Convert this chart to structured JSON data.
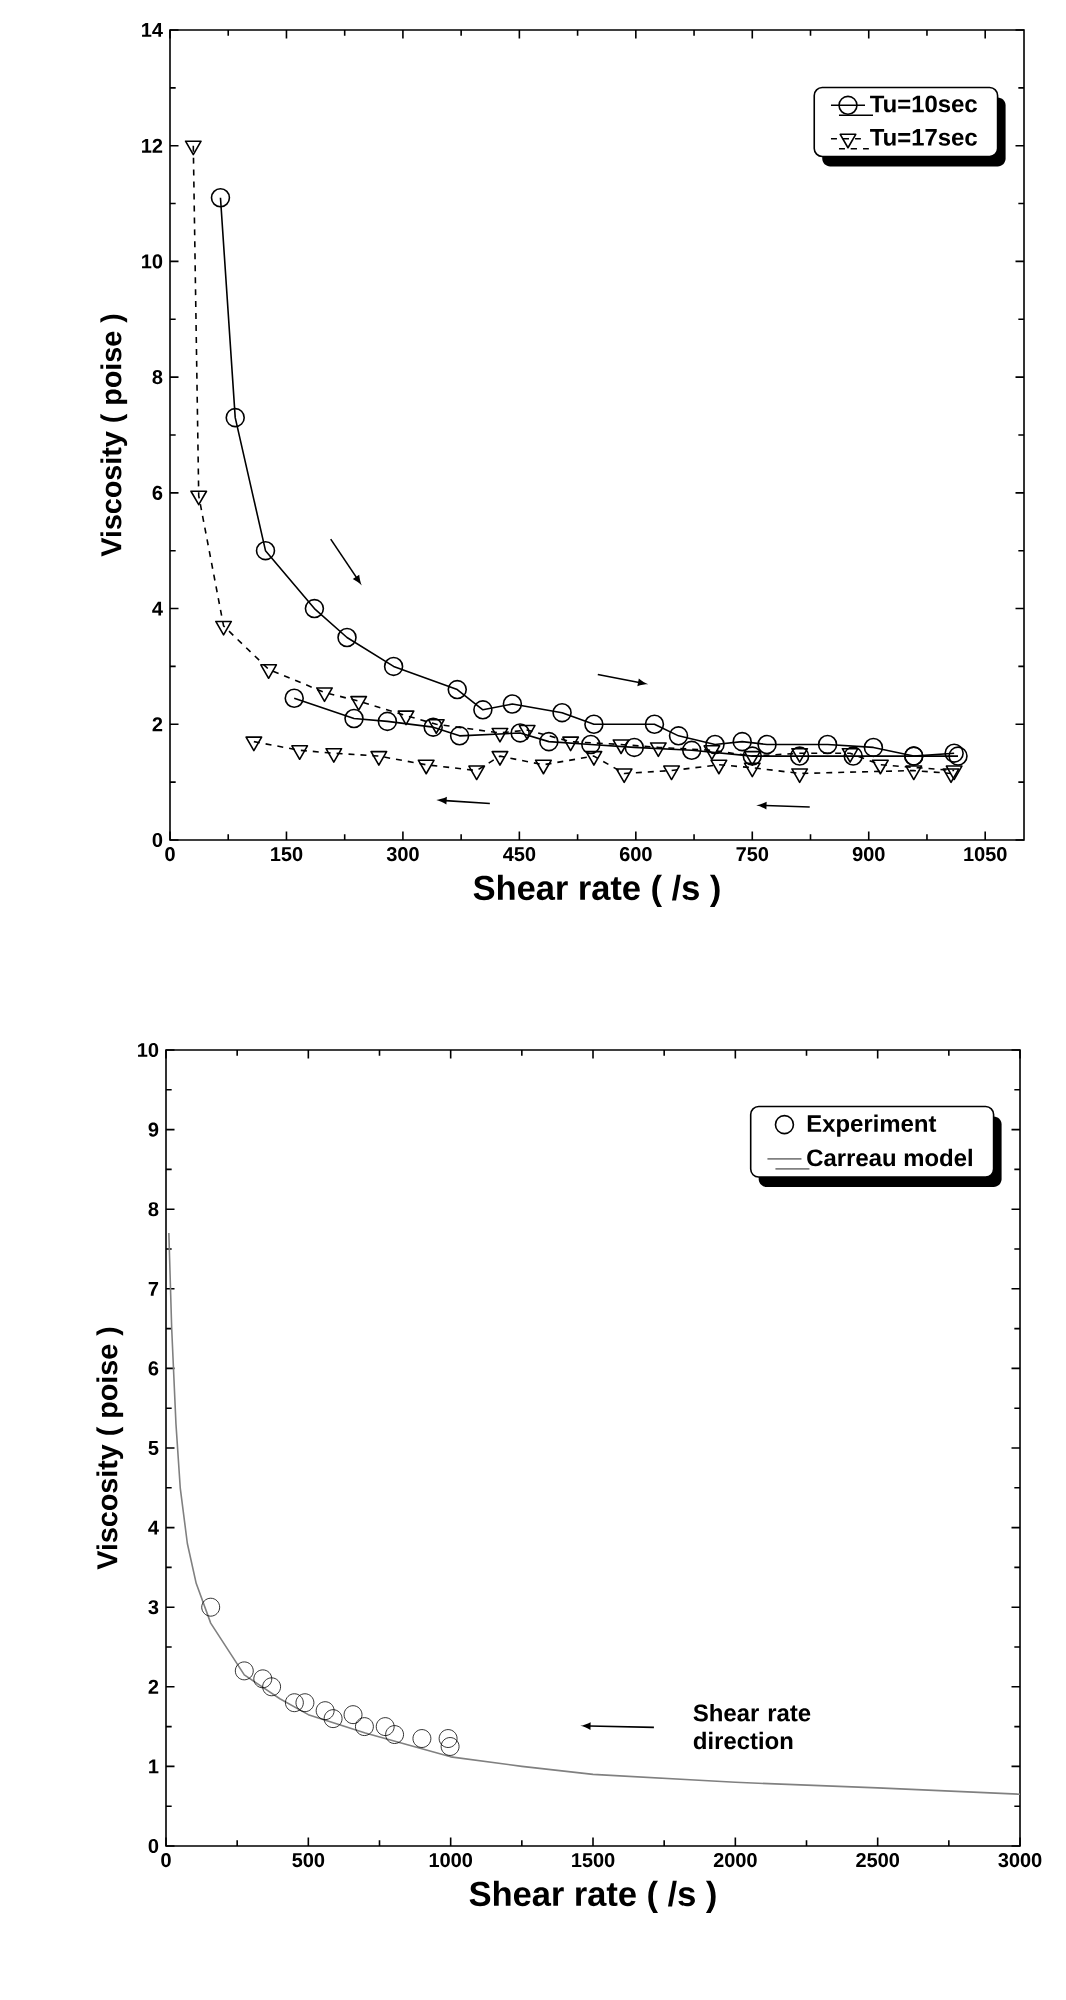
{
  "chart_data": [
    {
      "type": "line",
      "xlabel": "Shear rate ( /s )",
      "ylabel": "Viscosity ( poise )",
      "xlim": [
        0,
        1100
      ],
      "xticks": [
        0,
        150,
        300,
        450,
        600,
        750,
        900,
        1050
      ],
      "ylim": [
        0,
        14
      ],
      "yticks": [
        0,
        2,
        4,
        6,
        8,
        10,
        12,
        14
      ],
      "legend": "top right",
      "grid": false,
      "series": [
        {
          "name": "Tu=10sec",
          "color": "#000000",
          "marker": "circle",
          "line_style": "solid",
          "x": [
            65,
            84,
            123,
            186,
            228,
            288,
            370,
            403,
            441,
            505,
            546,
            624,
            655,
            702,
            737,
            769,
            847,
            906,
            958,
            1010
          ],
          "values": [
            11.1,
            7.3,
            5.0,
            4.0,
            3.5,
            3.0,
            2.6,
            2.25,
            2.35,
            2.2,
            2.0,
            2.0,
            1.8,
            1.65,
            1.7,
            1.65,
            1.65,
            1.6,
            1.45,
            1.5
          ]
        },
        {
          "color": "#000000",
          "marker": "circle",
          "line_style": "solid",
          "x": [
            160,
            237,
            280,
            339,
            373,
            451,
            488,
            542,
            598,
            672,
            750,
            811,
            880,
            958,
            1015
          ],
          "values": [
            2.45,
            2.1,
            2.05,
            1.95,
            1.8,
            1.85,
            1.7,
            1.65,
            1.6,
            1.55,
            1.45,
            1.45,
            1.45,
            1.45,
            1.45
          ]
        },
        {
          "name": "Tu=17sec",
          "color": "#000000",
          "marker": "triangle",
          "line_style": "dashed",
          "x": [
            30,
            37,
            69,
            127,
            199,
            243,
            304,
            343,
            425,
            460,
            516,
            581,
            629,
            698,
            750,
            811,
            876,
            915,
            1010
          ],
          "values": [
            12.0,
            5.95,
            3.7,
            2.95,
            2.55,
            2.4,
            2.15,
            2.0,
            1.85,
            1.9,
            1.7,
            1.65,
            1.6,
            1.55,
            1.45,
            1.5,
            1.5,
            1.3,
            1.2
          ]
        },
        {
          "color": "#000000",
          "marker": "triangle",
          "line_style": "dashed",
          "x": [
            108,
            167,
            211,
            269,
            330,
            395,
            425,
            481,
            546,
            585,
            646,
            707,
            750,
            811,
            958,
            1006
          ],
          "values": [
            1.7,
            1.55,
            1.5,
            1.45,
            1.3,
            1.2,
            1.45,
            1.3,
            1.45,
            1.15,
            1.2,
            1.3,
            1.25,
            1.15,
            1.2,
            1.15
          ]
        }
      ]
    },
    {
      "type": "scatter",
      "xlabel": "Shear rate ( /s )",
      "ylabel": "Viscosity ( poise )",
      "xlim": [
        0,
        3000
      ],
      "xticks": [
        0,
        500,
        1000,
        1500,
        2000,
        2500,
        3000
      ],
      "ylim": [
        0,
        10
      ],
      "yticks": [
        0,
        1,
        2,
        3,
        4,
        5,
        6,
        7,
        8,
        9,
        10
      ],
      "legend": "top right",
      "grid": false,
      "annotations": [
        "Shear rate direction"
      ],
      "series": [
        {
          "name": "Experiment",
          "type": "scatter",
          "color": "#000000",
          "marker": "circle",
          "x": [
            157,
            275,
            340,
            371,
            451,
            488,
            559,
            587,
            657,
            697,
            770,
            803,
            899,
            991,
            998
          ],
          "values": [
            3.0,
            2.2,
            2.1,
            2.0,
            1.8,
            1.8,
            1.7,
            1.6,
            1.65,
            1.5,
            1.5,
            1.4,
            1.35,
            1.35,
            1.25
          ]
        },
        {
          "name": "Carreau model",
          "type": "line",
          "color": "#808080",
          "marker": "none",
          "line_style": "solid",
          "x": [
            10,
            20,
            35,
            50,
            75,
            106,
            157,
            275,
            400,
            500,
            700,
            1000,
            1250,
            1500,
            2000,
            2500,
            3000
          ],
          "values": [
            7.7,
            6.5,
            5.3,
            4.5,
            3.8,
            3.3,
            2.8,
            2.15,
            1.85,
            1.65,
            1.42,
            1.12,
            1.0,
            0.9,
            0.8,
            0.73,
            0.65
          ]
        }
      ]
    }
  ]
}
